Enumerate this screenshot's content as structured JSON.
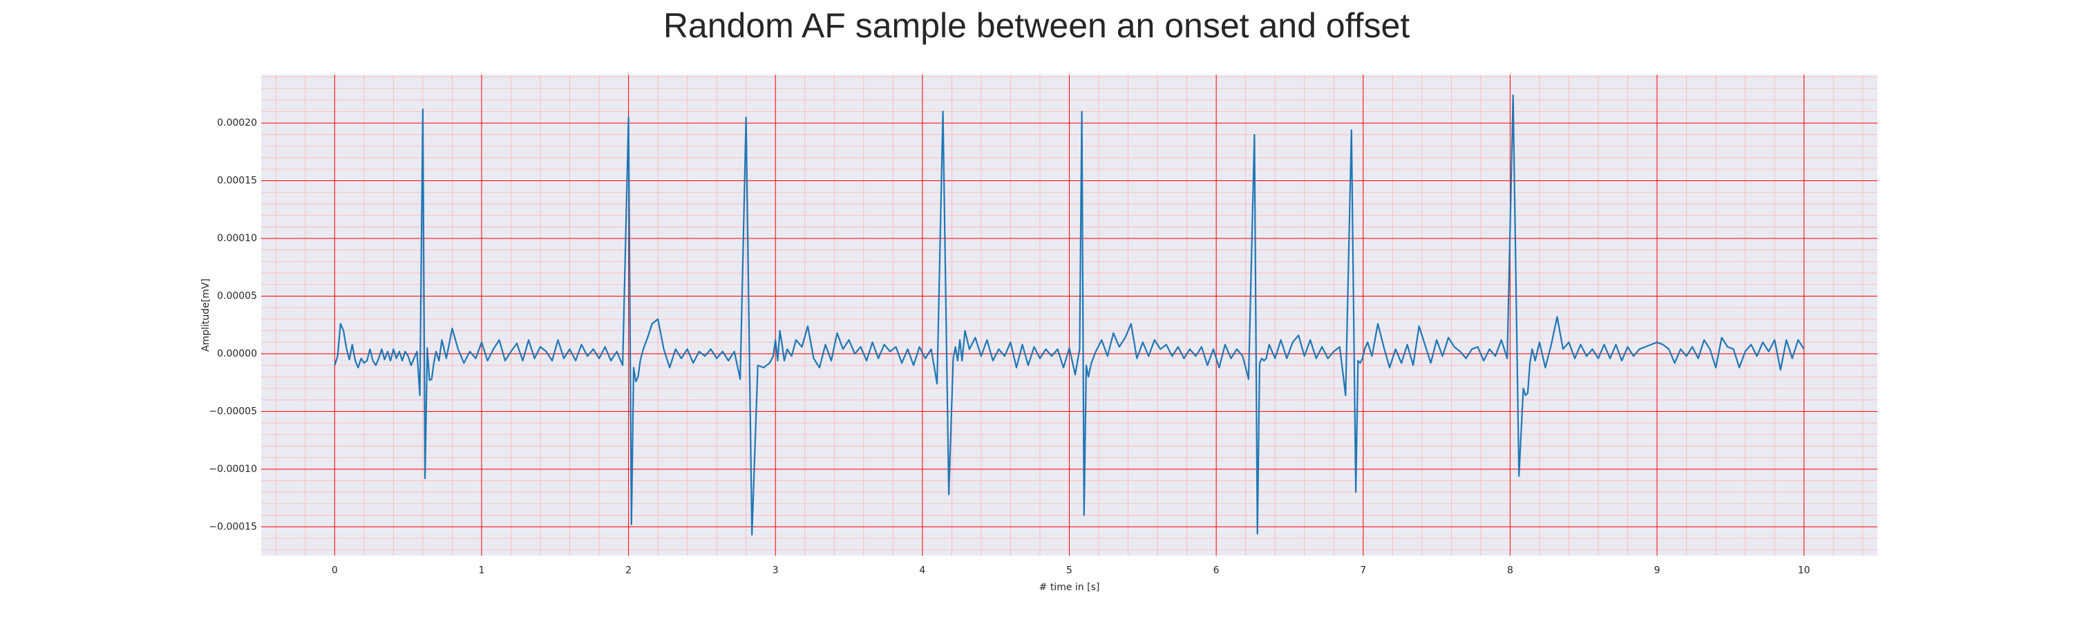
{
  "chart_data": {
    "type": "line",
    "title": "Random AF sample between an onset and offset",
    "xlabel": "# time in [s]",
    "ylabel": "Amplitude[mV]",
    "xlim": [
      -0.5,
      10.5
    ],
    "ylim": [
      -0.000175,
      0.000242
    ],
    "x_ticks": [
      0,
      1,
      2,
      3,
      4,
      5,
      6,
      7,
      8,
      9,
      10
    ],
    "x_tick_labels": [
      "0",
      "1",
      "2",
      "3",
      "4",
      "5",
      "6",
      "7",
      "8",
      "9",
      "10"
    ],
    "y_ticks": [
      -0.00015,
      -0.0001,
      -5e-05,
      0,
      5e-05,
      0.0001,
      0.00015,
      0.0002
    ],
    "y_tick_labels": [
      "−0.00015",
      "−0.00010",
      "−0.00005",
      "0.00000",
      "0.00005",
      "0.00010",
      "0.00015",
      "0.00020"
    ],
    "grid": {
      "major": true,
      "minor": true,
      "major_color": "#ff0000",
      "minor_color": "#ffb3b3"
    },
    "colors": {
      "background": "#eaeaf2",
      "line": "#1f77b4"
    },
    "series": [
      {
        "x": [
          0,
          0.02,
          0.04,
          0.06,
          0.08,
          0.1,
          0.12,
          0.14,
          0.16,
          0.18,
          0.2,
          0.22,
          0.24,
          0.26,
          0.28,
          0.3,
          0.32,
          0.34,
          0.36,
          0.38,
          0.4,
          0.42,
          0.44,
          0.46,
          0.48,
          0.5,
          0.52,
          0.54,
          0.56,
          0.58,
          0.6,
          0.615,
          0.63,
          0.645,
          0.66,
          0.675,
          0.69,
          0.71,
          0.73,
          0.76,
          0.8,
          0.84,
          0.88,
          0.92,
          0.96,
          1.0,
          1.04,
          1.08,
          1.12,
          1.16,
          1.2,
          1.24,
          1.28,
          1.32,
          1.36,
          1.4,
          1.44,
          1.48,
          1.52,
          1.56,
          1.6,
          1.64,
          1.68,
          1.72,
          1.76,
          1.8,
          1.84,
          1.88,
          1.92,
          1.96,
          2.0,
          2.02,
          2.035,
          2.05,
          2.065,
          2.08,
          2.1,
          2.13,
          2.16,
          2.2,
          2.24,
          2.28,
          2.32,
          2.36,
          2.4,
          2.44,
          2.48,
          2.52,
          2.56,
          2.6,
          2.64,
          2.68,
          2.72,
          2.76,
          2.8,
          2.84,
          2.88,
          2.92,
          2.96,
          2.985,
          3.0,
          3.015,
          3.03,
          3.045,
          3.06,
          3.08,
          3.11,
          3.14,
          3.18,
          3.22,
          3.26,
          3.3,
          3.34,
          3.38,
          3.42,
          3.46,
          3.5,
          3.54,
          3.58,
          3.62,
          3.66,
          3.7,
          3.74,
          3.78,
          3.82,
          3.86,
          3.9,
          3.94,
          3.98,
          4.02,
          4.06,
          4.1,
          4.14,
          4.18,
          4.21,
          4.225,
          4.24,
          4.255,
          4.27,
          4.29,
          4.32,
          4.36,
          4.4,
          4.44,
          4.48,
          4.52,
          4.56,
          4.6,
          4.64,
          4.68,
          4.72,
          4.76,
          4.8,
          4.84,
          4.88,
          4.92,
          4.96,
          5.0,
          5.04,
          5.07,
          5.085,
          5.1,
          5.115,
          5.13,
          5.15,
          5.18,
          5.22,
          5.26,
          5.3,
          5.34,
          5.38,
          5.42,
          5.46,
          5.5,
          5.54,
          5.58,
          5.62,
          5.66,
          5.7,
          5.74,
          5.78,
          5.82,
          5.86,
          5.9,
          5.94,
          5.98,
          6.02,
          6.06,
          6.1,
          6.14,
          6.18,
          6.22,
          6.26,
          6.28,
          6.295,
          6.31,
          6.325,
          6.34,
          6.36,
          6.4,
          6.44,
          6.48,
          6.52,
          6.56,
          6.6,
          6.64,
          6.68,
          6.72,
          6.76,
          6.8,
          6.84,
          6.88,
          6.92,
          6.95,
          6.965,
          6.98,
          6.995,
          7.01,
          7.03,
          7.06,
          7.1,
          7.14,
          7.18,
          7.22,
          7.26,
          7.3,
          7.34,
          7.38,
          7.42,
          7.46,
          7.5,
          7.54,
          7.58,
          7.62,
          7.66,
          7.7,
          7.74,
          7.78,
          7.82,
          7.86,
          7.9,
          7.94,
          7.98,
          8.02,
          8.06,
          8.09,
          8.105,
          8.12,
          8.135,
          8.15,
          8.17,
          8.2,
          8.24,
          8.28,
          8.32,
          8.36,
          8.4,
          8.44,
          8.48,
          8.52,
          8.56,
          8.6,
          8.64,
          8.68,
          8.72,
          8.76,
          8.8,
          8.84,
          8.88,
          8.92,
          8.96,
          9.0,
          9.04,
          9.08,
          9.12,
          9.16,
          9.2,
          9.24,
          9.28,
          9.32,
          9.36,
          9.4,
          9.44,
          9.48,
          9.52,
          9.56,
          9.6,
          9.64,
          9.68,
          9.72,
          9.76,
          9.8,
          9.84,
          9.88,
          9.92,
          9.96,
          10.0
        ],
        "y": [
          -1e-05,
          -2e-06,
          2.6e-05,
          2e-05,
          5e-06,
          -5e-06,
          8e-06,
          -6e-06,
          -1.2e-05,
          -4e-06,
          -8e-06,
          -6e-06,
          4e-06,
          -6e-06,
          -1e-05,
          -4e-06,
          4e-06,
          -5e-06,
          2e-06,
          -6e-06,
          4e-06,
          -4e-06,
          2e-06,
          -6e-06,
          2e-06,
          -2e-06,
          -1e-05,
          -4e-06,
          2e-06,
          -3.6e-05,
          0.000212,
          -0.000108,
          5e-06,
          -2.3e-05,
          -2.2e-05,
          -8e-06,
          2e-06,
          -6e-06,
          1.2e-05,
          -4e-06,
          2.2e-05,
          4e-06,
          -8e-06,
          2e-06,
          -4e-06,
          1e-05,
          -6e-06,
          4e-06,
          1.2e-05,
          -6e-06,
          2e-06,
          9e-06,
          -6e-06,
          1.2e-05,
          -4e-06,
          6e-06,
          2e-06,
          -6e-06,
          1.2e-05,
          -4e-06,
          4e-06,
          -6e-06,
          8e-06,
          -2e-06,
          4e-06,
          -4e-06,
          6e-06,
          -6e-06,
          2e-06,
          -1e-05,
          0.000205,
          -0.000148,
          -1.2e-05,
          -2.4e-05,
          -2e-05,
          -6e-06,
          4e-06,
          1.4e-05,
          2.6e-05,
          3e-05,
          4e-06,
          -1.2e-05,
          4e-06,
          -4e-06,
          4e-06,
          -8e-06,
          2e-06,
          -2e-06,
          4e-06,
          -4e-06,
          2e-06,
          -6e-06,
          2e-06,
          -2.2e-05,
          0.000205,
          -0.000157,
          -1e-05,
          -1.2e-05,
          -8e-06,
          -2e-06,
          1.2e-05,
          -6e-06,
          2e-05,
          8e-06,
          -6e-06,
          4e-06,
          -2e-06,
          1.2e-05,
          6e-06,
          2.4e-05,
          -4e-06,
          -1.2e-05,
          8e-06,
          -6e-06,
          1.8e-05,
          4e-06,
          1.2e-05,
          0.0,
          6e-06,
          -6e-06,
          1e-05,
          -4e-06,
          8e-06,
          2e-06,
          6e-06,
          -8e-06,
          4e-06,
          -1e-05,
          6e-06,
          -4e-06,
          4e-06,
          -2.6e-05,
          0.00021,
          -0.000122,
          -4e-06,
          6e-06,
          -6e-06,
          1.2e-05,
          -6e-06,
          2e-05,
          4e-06,
          1.4e-05,
          -2e-06,
          1.2e-05,
          -6e-06,
          4e-06,
          -2e-06,
          1e-05,
          -1.2e-05,
          8e-06,
          -1e-05,
          6e-06,
          -4e-06,
          4e-06,
          -2e-06,
          4e-06,
          -1.2e-05,
          5e-06,
          -1.8e-05,
          4e-06,
          0.00021,
          -0.00014,
          -1e-05,
          -2e-05,
          -8e-06,
          2e-06,
          1.2e-05,
          -2e-06,
          1.8e-05,
          6e-06,
          1.4e-05,
          2.6e-05,
          -4e-06,
          1e-05,
          -2e-06,
          1.2e-05,
          4e-06,
          8e-06,
          -2e-06,
          6e-06,
          -4e-06,
          4e-06,
          -2e-06,
          6e-06,
          -1e-05,
          4e-06,
          -1.2e-05,
          8e-06,
          -4e-06,
          4e-06,
          -2e-06,
          -2.2e-05,
          0.00019,
          -0.000156,
          -8e-06,
          -4e-06,
          -6e-06,
          -4e-06,
          8e-06,
          -4e-06,
          1.2e-05,
          -4e-06,
          1e-05,
          1.6e-05,
          -2e-06,
          1.2e-05,
          -4e-06,
          6e-06,
          -4e-06,
          2e-06,
          6e-06,
          -3.6e-05,
          0.000194,
          -0.00012,
          -6e-06,
          -8e-06,
          -4e-06,
          4e-06,
          1e-05,
          -2e-06,
          2.6e-05,
          6e-06,
          -1.2e-05,
          4e-06,
          -8e-06,
          8e-06,
          -1e-05,
          2.4e-05,
          8e-06,
          -8e-06,
          1.2e-05,
          -2e-06,
          1.4e-05,
          6e-06,
          2e-06,
          -4e-06,
          4e-06,
          6e-06,
          -6e-06,
          4e-06,
          -2e-06,
          1.2e-05,
          -4e-06,
          0.000224,
          -0.000106,
          -3e-05,
          -3.6e-05,
          -3.4e-05,
          -8e-06,
          4e-06,
          -6e-06,
          1e-05,
          -1.2e-05,
          8e-06,
          3.2e-05,
          4e-06,
          1e-05,
          -4e-06,
          8e-06,
          -2e-06,
          4e-06,
          -4e-06,
          8e-06,
          -4e-06,
          8e-06,
          -6e-06,
          6e-06,
          -2e-06,
          4e-06,
          6e-06,
          8e-06,
          1e-05,
          8e-06,
          4e-06,
          -8e-06,
          4e-06,
          -2e-06,
          6e-06,
          -4e-06,
          1.2e-05,
          4e-06,
          -1.2e-05,
          1.4e-05,
          6e-06,
          4e-06,
          -1.2e-05,
          2e-06,
          8e-06,
          -2e-06,
          1e-05,
          2e-06,
          1.2e-05,
          -1.4e-05,
          1.2e-05,
          -4e-06,
          1.2e-05,
          4e-06
        ]
      }
    ]
  }
}
